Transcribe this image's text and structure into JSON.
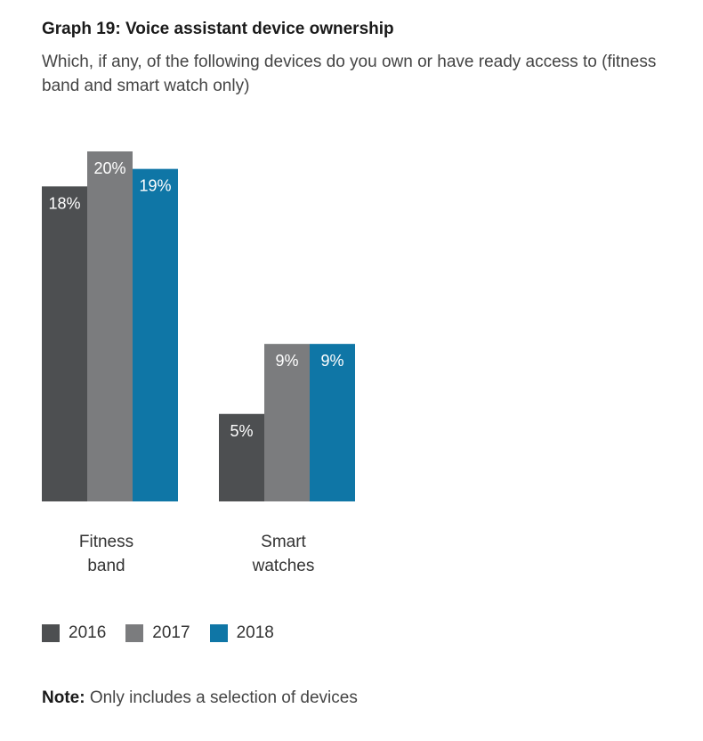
{
  "header": {
    "title": "Graph 19: Voice assistant device ownership",
    "subtitle": "Which, if any, of the following devices do you own or have ready access to (fitness band and smart watch only)"
  },
  "colors": {
    "2016": "#4d4f51",
    "2017": "#7b7c7e",
    "2018": "#0f76a6"
  },
  "chart_data": {
    "type": "bar",
    "categories": [
      "Fitness band",
      "Smart watches"
    ],
    "category_lines": [
      [
        "Fitness",
        "band"
      ],
      [
        "Smart",
        "watches"
      ]
    ],
    "series": [
      {
        "name": "2016",
        "values": [
          18,
          5
        ],
        "labels": [
          "18%",
          "5%"
        ]
      },
      {
        "name": "2017",
        "values": [
          20,
          9
        ],
        "labels": [
          "20%",
          "9%"
        ]
      },
      {
        "name": "2018",
        "values": [
          19,
          9
        ],
        "labels": [
          "19%",
          "9%"
        ]
      }
    ],
    "ylim": [
      0,
      20
    ],
    "grid": false,
    "legend": "bottom-left",
    "title": "Graph 19: Voice assistant device ownership",
    "xlabel": "",
    "ylabel": ""
  },
  "legend": [
    {
      "label": "2016"
    },
    {
      "label": "2017"
    },
    {
      "label": "2018"
    }
  ],
  "note": {
    "prefix": "Note:",
    "text": " Only includes a selection of devices"
  }
}
